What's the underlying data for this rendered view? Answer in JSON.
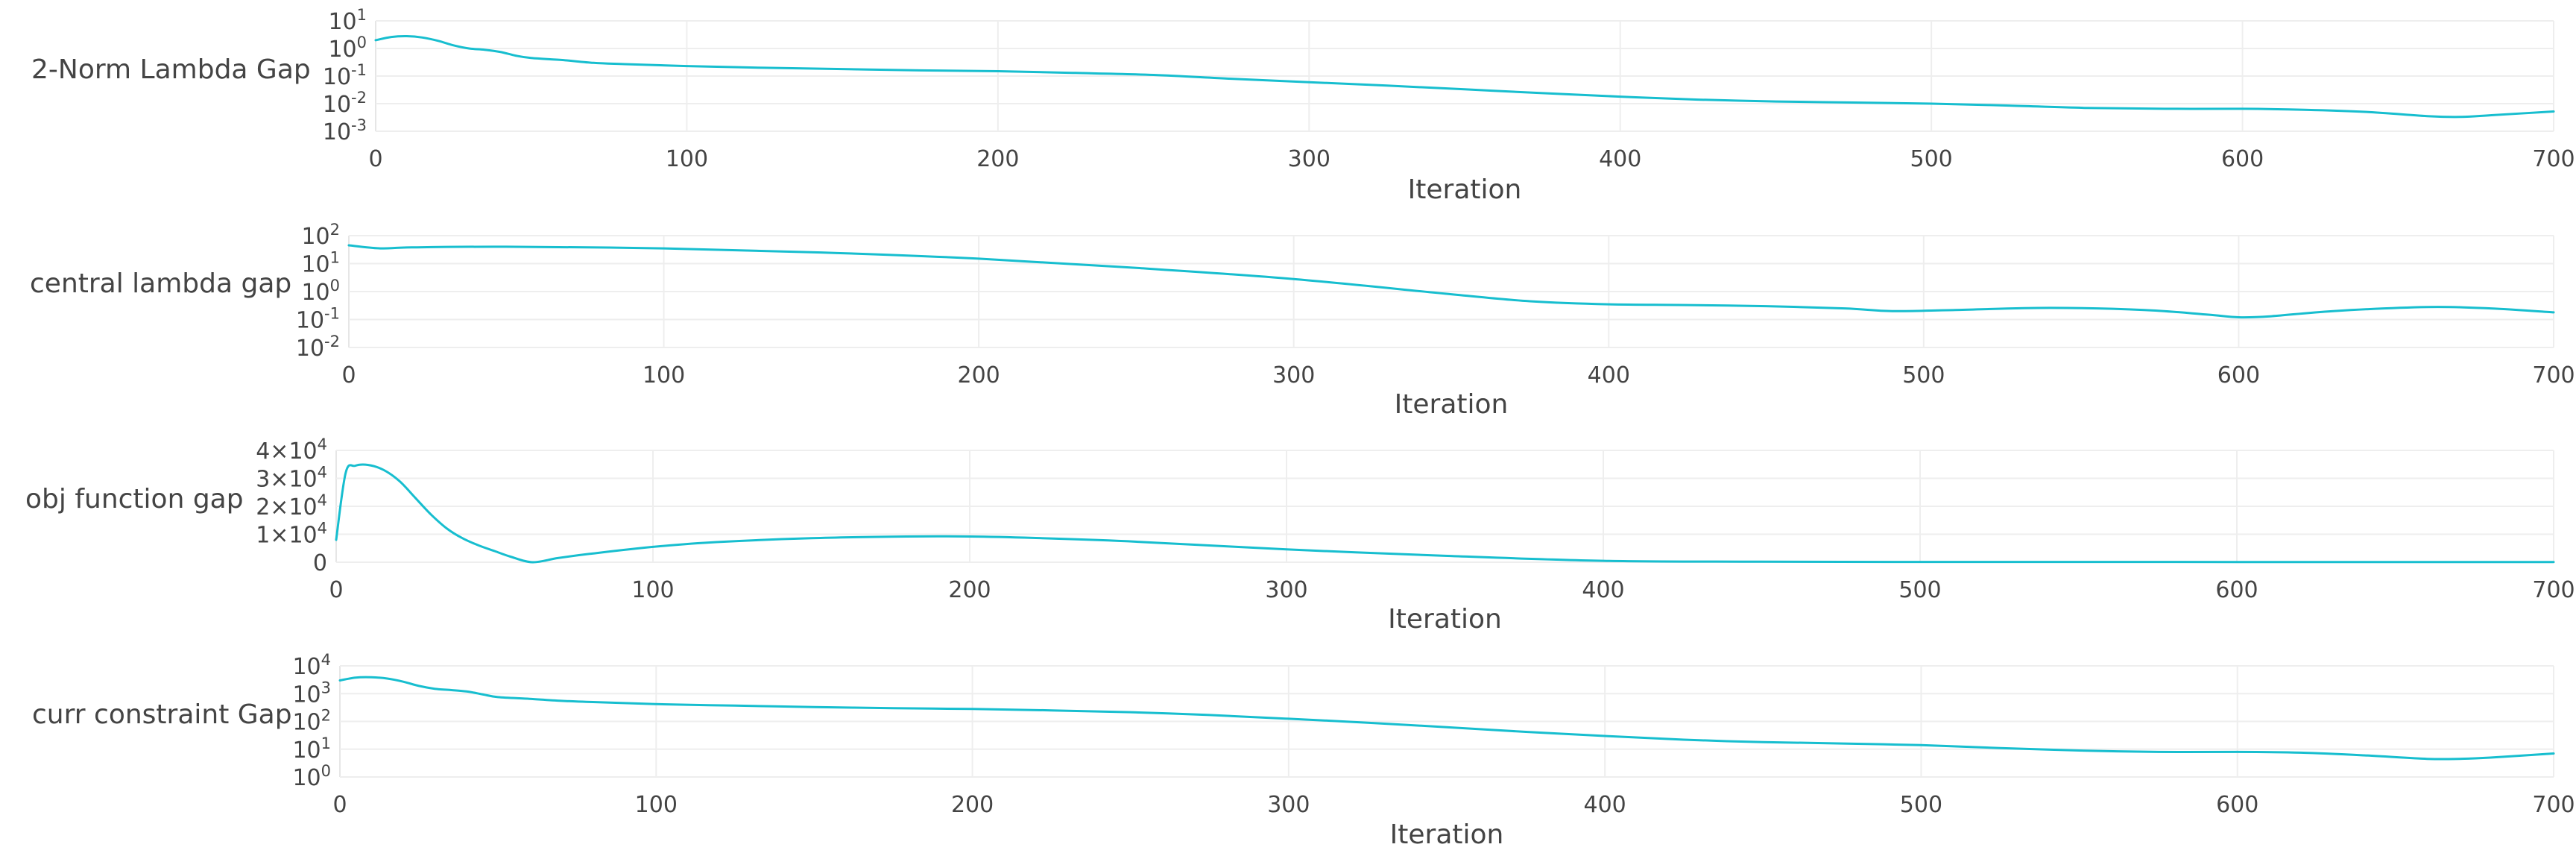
{
  "colors": {
    "series": "#17BECF",
    "grid": "#eeeeee",
    "text": "#444444",
    "background": "#ffffff"
  },
  "chart_data": [
    {
      "type": "line",
      "title": "",
      "xlabel": "Iteration",
      "ylabel": "2-Norm Lambda Gap",
      "xlim": [
        0,
        700
      ],
      "yscale": "log",
      "ylim": [
        0.001,
        10
      ],
      "grid": true,
      "xticks": [
        0,
        100,
        200,
        300,
        400,
        500,
        600,
        700
      ],
      "xtick_labels": [
        "0",
        "100",
        "200",
        "300",
        "400",
        "500",
        "600",
        "700"
      ],
      "yticks": [
        0.001,
        0.01,
        0.1,
        1,
        10
      ],
      "ytick_labels": [
        {
          "base": "10",
          "exp": "-3"
        },
        {
          "base": "10",
          "exp": "-2"
        },
        {
          "base": "10",
          "exp": "-1"
        },
        {
          "base": "10",
          "exp": "0"
        },
        {
          "base": "10",
          "exp": "1"
        }
      ],
      "series": [
        {
          "x": [
            0,
            5,
            10,
            15,
            20,
            25,
            30,
            35,
            40,
            45,
            50,
            60,
            70,
            80,
            100,
            125,
            150,
            175,
            200,
            225,
            250,
            275,
            300,
            325,
            350,
            375,
            400,
            425,
            450,
            475,
            500,
            525,
            550,
            575,
            600,
            620,
            640,
            660,
            670,
            680,
            700
          ],
          "y": [
            2.0,
            2.6,
            2.8,
            2.5,
            1.9,
            1.3,
            1.0,
            0.9,
            0.75,
            0.55,
            0.45,
            0.38,
            0.3,
            0.27,
            0.23,
            0.2,
            0.18,
            0.16,
            0.15,
            0.13,
            0.11,
            0.08,
            0.06,
            0.045,
            0.033,
            0.024,
            0.018,
            0.014,
            0.012,
            0.011,
            0.01,
            0.0085,
            0.007,
            0.0065,
            0.0065,
            0.006,
            0.005,
            0.0035,
            0.0033,
            0.0038,
            0.0052
          ]
        }
      ]
    },
    {
      "type": "line",
      "title": "",
      "xlabel": "Iteration",
      "ylabel": "central lambda gap",
      "xlim": [
        0,
        700
      ],
      "yscale": "log",
      "ylim": [
        0.01,
        100
      ],
      "grid": true,
      "xticks": [
        0,
        100,
        200,
        300,
        400,
        500,
        600,
        700
      ],
      "xtick_labels": [
        "0",
        "100",
        "200",
        "300",
        "400",
        "500",
        "600",
        "700"
      ],
      "yticks": [
        0.01,
        0.1,
        1,
        10,
        100
      ],
      "ytick_labels": [
        {
          "base": "10",
          "exp": "-2"
        },
        {
          "base": "10",
          "exp": "-1"
        },
        {
          "base": "10",
          "exp": "0"
        },
        {
          "base": "10",
          "exp": "1"
        },
        {
          "base": "10",
          "exp": "2"
        }
      ],
      "series": [
        {
          "x": [
            0,
            10,
            20,
            50,
            100,
            150,
            200,
            250,
            300,
            350,
            375,
            400,
            425,
            450,
            475,
            490,
            510,
            540,
            570,
            590,
            600,
            610,
            630,
            660,
            680,
            700
          ],
          "y": [
            45,
            35,
            38,
            40,
            35,
            25,
            15,
            7,
            2.8,
            0.8,
            0.45,
            0.35,
            0.33,
            0.3,
            0.25,
            0.2,
            0.22,
            0.26,
            0.22,
            0.15,
            0.12,
            0.13,
            0.2,
            0.28,
            0.25,
            0.18
          ]
        }
      ]
    },
    {
      "type": "line",
      "title": "",
      "xlabel": "Iteration",
      "ylabel": "obj function gap",
      "xlim": [
        0,
        700
      ],
      "yscale": "linear",
      "ylim": [
        0,
        40000
      ],
      "grid": true,
      "xticks": [
        0,
        100,
        200,
        300,
        400,
        500,
        600,
        700
      ],
      "xtick_labels": [
        "0",
        "100",
        "200",
        "300",
        "400",
        "500",
        "600",
        "700"
      ],
      "yticks": [
        0,
        10000,
        20000,
        30000,
        40000
      ],
      "ytick_labels": [
        {
          "base": "0",
          "exp": ""
        },
        {
          "base": "1×10",
          "exp": "4"
        },
        {
          "base": "2×10",
          "exp": "4"
        },
        {
          "base": "3×10",
          "exp": "4"
        },
        {
          "base": "4×10",
          "exp": "4"
        }
      ],
      "series": [
        {
          "x": [
            0,
            3,
            6,
            10,
            15,
            20,
            25,
            30,
            35,
            40,
            45,
            50,
            55,
            62,
            70,
            80,
            100,
            120,
            150,
            180,
            200,
            220,
            250,
            300,
            350,
            400,
            450,
            500,
            550,
            600,
            650,
            700
          ],
          "y": [
            8000,
            32000,
            34500,
            34800,
            33000,
            29000,
            23000,
            17000,
            12000,
            8500,
            6000,
            4000,
            2000,
            0,
            1500,
            3000,
            5500,
            7200,
            8600,
            9200,
            9200,
            8700,
            7500,
            4600,
            2300,
            500,
            200,
            100,
            100,
            80,
            60,
            50
          ]
        }
      ]
    },
    {
      "type": "line",
      "title": "",
      "xlabel": "Iteration",
      "ylabel": "curr constraint Gap",
      "xlim": [
        0,
        700
      ],
      "yscale": "log",
      "ylim": [
        1,
        10000
      ],
      "grid": true,
      "xticks": [
        0,
        100,
        200,
        300,
        400,
        500,
        600,
        700
      ],
      "xtick_labels": [
        "0",
        "100",
        "200",
        "300",
        "400",
        "500",
        "600",
        "700"
      ],
      "yticks": [
        1,
        10,
        100,
        1000,
        10000
      ],
      "ytick_labels": [
        {
          "base": "10",
          "exp": "0"
        },
        {
          "base": "10",
          "exp": "1"
        },
        {
          "base": "10",
          "exp": "2"
        },
        {
          "base": "10",
          "exp": "3"
        },
        {
          "base": "10",
          "exp": "4"
        }
      ],
      "series": [
        {
          "x": [
            0,
            5,
            10,
            15,
            20,
            25,
            30,
            35,
            40,
            45,
            50,
            60,
            70,
            80,
            100,
            125,
            150,
            175,
            200,
            225,
            250,
            275,
            300,
            325,
            350,
            375,
            400,
            425,
            450,
            475,
            500,
            525,
            550,
            575,
            600,
            620,
            640,
            660,
            670,
            680,
            700
          ],
          "y": [
            3000,
            3800,
            3900,
            3500,
            2700,
            1900,
            1500,
            1350,
            1200,
            950,
            750,
            650,
            550,
            500,
            420,
            370,
            330,
            300,
            280,
            250,
            215,
            170,
            125,
            90,
            62,
            42,
            30,
            22,
            18,
            16,
            14,
            11,
            9,
            8,
            8,
            7.5,
            6,
            4.5,
            4.5,
            5,
            7
          ]
        }
      ]
    }
  ]
}
